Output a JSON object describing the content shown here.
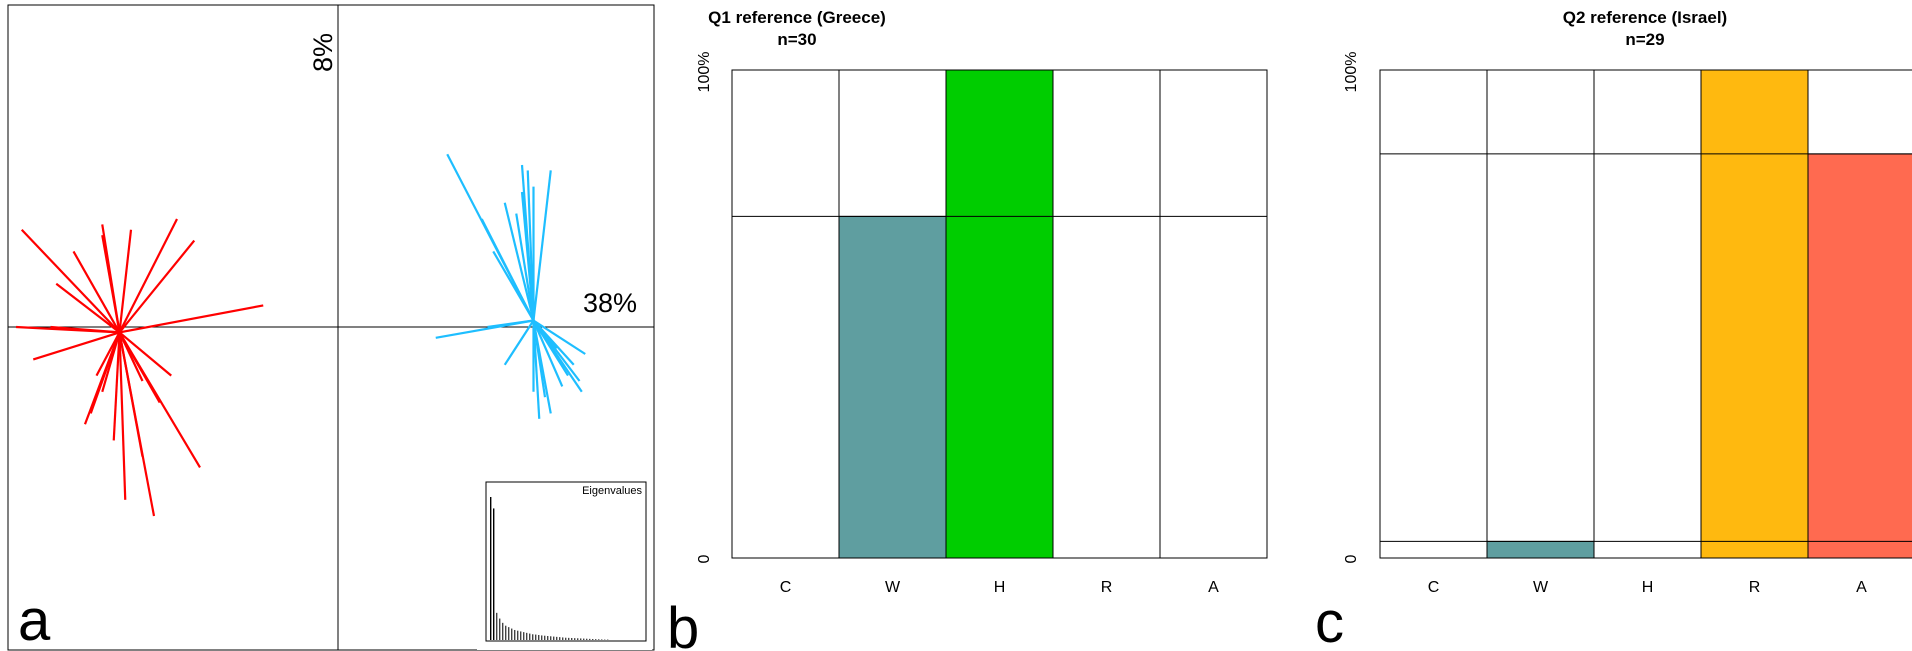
{
  "panel_labels": {
    "a": "a",
    "b": "b",
    "c": "c"
  },
  "chart_data": [
    {
      "type": "scatter",
      "subtype": "pca-star-plot",
      "axis1_pct": "38%",
      "axis2_pct": "8%",
      "groups": [
        {
          "color": "#ff0000",
          "centroid": [
            -1.9,
            -0.05
          ],
          "points": [
            [
              -2.75,
              0.9
            ],
            [
              -2.05,
              0.95
            ],
            [
              -2.05,
              0.85
            ],
            [
              -2.45,
              0.4
            ],
            [
              -2.5,
              0.0
            ],
            [
              -2.8,
              0.0
            ],
            [
              -2.65,
              -0.3
            ],
            [
              -2.1,
              -0.45
            ],
            [
              -2.15,
              -0.8
            ],
            [
              -1.7,
              -0.5
            ],
            [
              -1.7,
              -1.2
            ],
            [
              -1.85,
              -1.6
            ],
            [
              -1.45,
              -0.45
            ],
            [
              -1.2,
              -1.3
            ],
            [
              -1.25,
              0.8
            ],
            [
              -1.4,
              1.0
            ],
            [
              -0.65,
              0.2
            ],
            [
              -1.55,
              -0.7
            ],
            [
              -2.3,
              0.7
            ],
            [
              -1.8,
              0.9
            ],
            [
              -2.2,
              -0.9
            ],
            [
              -1.95,
              -1.05
            ],
            [
              -1.6,
              -1.75
            ],
            [
              -2.05,
              -0.6
            ]
          ]
        },
        {
          "color": "#1ebeff",
          "centroid": [
            1.7,
            0.06
          ],
          "points": [
            [
              0.95,
              1.6
            ],
            [
              1.6,
              1.5
            ],
            [
              1.65,
              1.45
            ],
            [
              1.85,
              1.45
            ],
            [
              1.25,
              1.0
            ],
            [
              1.35,
              0.7
            ],
            [
              1.45,
              1.15
            ],
            [
              1.55,
              1.05
            ],
            [
              0.85,
              -0.1
            ],
            [
              1.3,
              0.0
            ],
            [
              2.15,
              -0.25
            ],
            [
              2.1,
              -0.5
            ],
            [
              1.95,
              -0.55
            ],
            [
              1.85,
              -0.8
            ],
            [
              1.75,
              -0.85
            ],
            [
              2.05,
              -0.35
            ],
            [
              1.7,
              -0.6
            ],
            [
              1.9,
              -0.2
            ],
            [
              2.0,
              -0.45
            ],
            [
              1.6,
              1.25
            ],
            [
              1.45,
              -0.35
            ],
            [
              1.8,
              -0.65
            ],
            [
              2.12,
              -0.6
            ],
            [
              1.7,
              1.3
            ]
          ]
        }
      ],
      "inset": {
        "title": "Eigenvalues",
        "values": [
          1.0,
          0.92,
          0.19,
          0.15,
          0.12,
          0.1,
          0.09,
          0.08,
          0.07,
          0.065,
          0.06,
          0.055,
          0.05,
          0.045,
          0.04,
          0.038,
          0.035,
          0.032,
          0.03,
          0.028,
          0.026,
          0.024,
          0.022,
          0.02,
          0.018,
          0.016,
          0.015,
          0.014,
          0.013,
          0.012,
          0.011,
          0.01,
          0.009,
          0.008,
          0.007,
          0.006,
          0.005,
          0.004,
          0.003,
          0.003
        ]
      }
    },
    {
      "type": "bar",
      "title": "Q1 reference (Greece)",
      "subtitle": "n=30",
      "categories": [
        "C",
        "W",
        "H",
        "R",
        "A"
      ],
      "values": [
        0,
        70,
        100,
        0,
        0
      ],
      "colors": [
        "#5f9ea0",
        "#5f9ea0",
        "#00cd00",
        "#ffb90f",
        "#ff6a50"
      ],
      "hline": 70,
      "ytick_bottom": "0",
      "ytick_top": "100%",
      "ylim": [
        0,
        100
      ]
    },
    {
      "type": "bar",
      "title": "Q2 reference (Israel)",
      "subtitle": "n=29",
      "categories": [
        "C",
        "W",
        "H",
        "R",
        "A"
      ],
      "values": [
        0,
        3.4,
        0,
        100,
        82.8
      ],
      "colors": [
        "#5f9ea0",
        "#5f9ea0",
        "#00cd00",
        "#ffb90f",
        "#ff6a50"
      ],
      "hline": [
        3.4,
        82.8
      ],
      "ytick_bottom": "0",
      "ytick_top": "100%",
      "ylim": [
        0,
        100
      ]
    }
  ]
}
